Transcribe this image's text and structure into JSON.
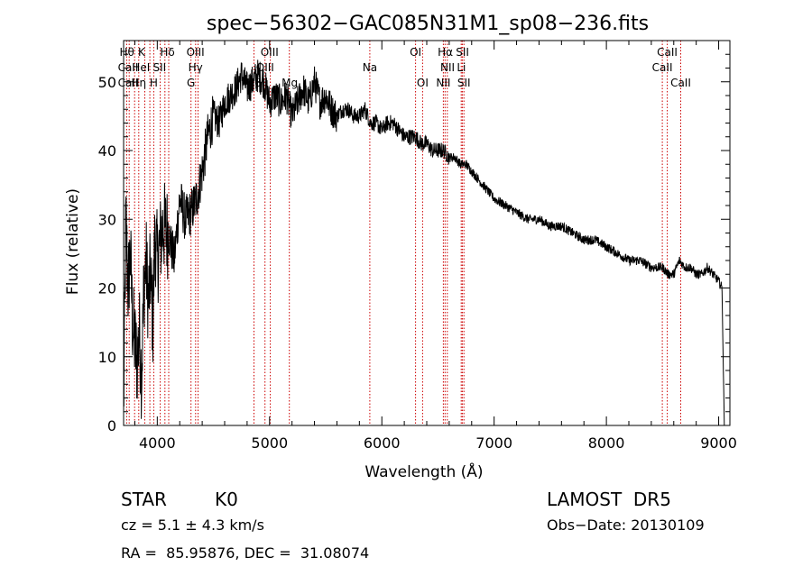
{
  "chart_data": {
    "type": "line",
    "title": "spec−56302−GAC085N31M1_sp08−236.fits",
    "xlabel": "Wavelength (Å)",
    "ylabel": "Flux (relative)",
    "xlim": [
      3700,
      9100
    ],
    "ylim": [
      0,
      56
    ],
    "xticks": [
      4000,
      5000,
      6000,
      7000,
      8000,
      9000
    ],
    "yticks": [
      0,
      10,
      20,
      30,
      40,
      50
    ],
    "grid": false,
    "series": [
      {
        "x": [
          3700,
          3720,
          3740,
          3760,
          3780,
          3800,
          3820,
          3840,
          3860,
          3880,
          3900,
          3920,
          3940,
          3960,
          3980,
          4000,
          4050,
          4100,
          4150,
          4200,
          4250,
          4300,
          4350,
          4400,
          4450,
          4500,
          4550,
          4600,
          4650,
          4700,
          4750,
          4800,
          4850,
          4900,
          4950,
          5000,
          5050,
          5100,
          5150,
          5200,
          5250,
          5300,
          5350,
          5400,
          5450,
          5500,
          5550,
          5600,
          5650,
          5700,
          5750,
          5800,
          5850,
          5900,
          5950,
          6000,
          6050,
          6100,
          6150,
          6200,
          6250,
          6300,
          6350,
          6400,
          6450,
          6500,
          6550,
          6600,
          6650,
          6700,
          6750,
          6800,
          6850,
          6900,
          6950,
          7000,
          7100,
          7200,
          7300,
          7400,
          7500,
          7600,
          7700,
          7800,
          7900,
          8000,
          8100,
          8200,
          8300,
          8400,
          8500,
          8550,
          8600,
          8650,
          8700,
          8750,
          8800,
          8850,
          8900,
          8950,
          9000,
          9030,
          9050
        ],
        "y": [
          2,
          30,
          20,
          25,
          15,
          12,
          9,
          14,
          7,
          20,
          24,
          18,
          22,
          15,
          28,
          24,
          29,
          28,
          24,
          33,
          30,
          31,
          33,
          37,
          42,
          45,
          44,
          47,
          48,
          49,
          51,
          49,
          50,
          51,
          50,
          47,
          48,
          47,
          48,
          45,
          47,
          49,
          47,
          50,
          47,
          48,
          46,
          45,
          46,
          46,
          45,
          45,
          46,
          44,
          44,
          43,
          44,
          44,
          43,
          42,
          42,
          42,
          41,
          41,
          40,
          40,
          40,
          39,
          39,
          38,
          38,
          37,
          36,
          35,
          34,
          33,
          32,
          31,
          30,
          30,
          29,
          29,
          28,
          27,
          27,
          26,
          25,
          24,
          24,
          23,
          23,
          22,
          22,
          24,
          23,
          23,
          22,
          22,
          23,
          22,
          21,
          20,
          0
        ]
      }
    ],
    "spectral_lines": [
      {
        "name": "CaII",
        "wave": 8498
      },
      {
        "name": "CaII",
        "wave": 8542
      },
      {
        "name": "CaII",
        "wave": 8662
      }
    ],
    "line_labels": [
      {
        "text": "Hθ",
        "x": 3730,
        "row": 1
      },
      {
        "text": "CaII",
        "x": 3740,
        "row": 2
      },
      {
        "text": "CaII",
        "x": 3740,
        "row": 3
      },
      {
        "text": "K",
        "x": 3860,
        "row": 1
      },
      {
        "text": "HeI",
        "x": 3855,
        "row": 2
      },
      {
        "text": "Hη",
        "x": 3835,
        "row": 3
      },
      {
        "text": "Hδ",
        "x": 4090,
        "row": 1
      },
      {
        "text": "SII",
        "x": 4020,
        "row": 2
      },
      {
        "text": "H",
        "x": 3968,
        "row": 3
      },
      {
        "text": "OIII",
        "x": 4340,
        "row": 1
      },
      {
        "text": "Hγ",
        "x": 4340,
        "row": 2
      },
      {
        "text": "G",
        "x": 4300,
        "row": 3
      },
      {
        "text": "OIII",
        "x": 5000,
        "row": 1
      },
      {
        "text": "OIII",
        "x": 4960,
        "row": 2
      },
      {
        "text": "Hβ",
        "x": 4861,
        "row": 3
      },
      {
        "text": "Mg",
        "x": 5180,
        "row": 3
      },
      {
        "text": "Na",
        "x": 5893,
        "row": 2
      },
      {
        "text": "OI",
        "x": 6300,
        "row": 1
      },
      {
        "text": "OI",
        "x": 6363,
        "row": 3
      },
      {
        "text": "Hα",
        "x": 6565,
        "row": 1
      },
      {
        "text": "SII",
        "x": 6718,
        "row": 1
      },
      {
        "text": "NII",
        "x": 6585,
        "row": 2
      },
      {
        "text": "Li",
        "x": 6708,
        "row": 2
      },
      {
        "text": "NII",
        "x": 6548,
        "row": 3
      },
      {
        "text": "SII",
        "x": 6731,
        "row": 3
      },
      {
        "text": "CaII",
        "x": 8542,
        "row": 1
      },
      {
        "text": "CaII",
        "x": 8498,
        "row": 2
      },
      {
        "text": "CaII",
        "x": 8662,
        "row": 3
      }
    ],
    "line_waves": [
      3727,
      3750,
      3798,
      3835,
      3889,
      3934,
      3968,
      4026,
      4068,
      4102,
      4300,
      4341,
      4363,
      4861,
      4959,
      5007,
      5176,
      5893,
      6300,
      6363,
      6548,
      6563,
      6583,
      6707,
      6717,
      6731,
      8498,
      8542,
      8662
    ],
    "colors": {
      "spectrum": "#000000",
      "lines": "#cc0000",
      "axes": "#000000"
    }
  },
  "info": {
    "object_class": "STAR",
    "subclass": "K0",
    "survey": "LAMOST  DR5",
    "velocity": "cz = 5.1 ± 4.3 km/s",
    "obs_date": "Obs−Date: 20130109",
    "coords": "RA =  85.95876, DEC =  31.08074"
  }
}
